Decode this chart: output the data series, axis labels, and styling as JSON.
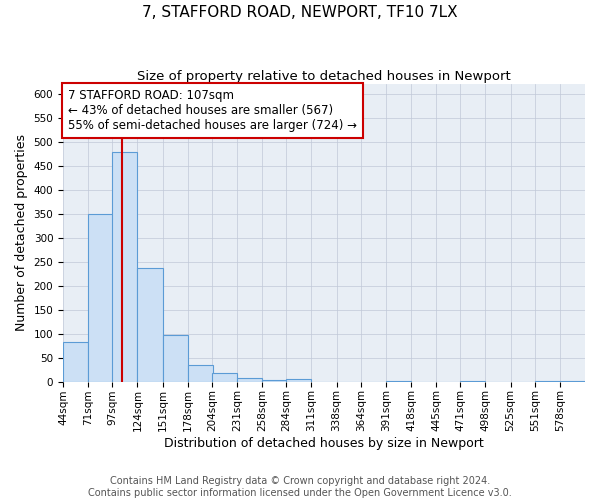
{
  "title": "7, STAFFORD ROAD, NEWPORT, TF10 7LX",
  "subtitle": "Size of property relative to detached houses in Newport",
  "xlabel": "Distribution of detached houses by size in Newport",
  "ylabel": "Number of detached properties",
  "bar_edges": [
    44,
    71,
    97,
    124,
    151,
    178,
    204,
    231,
    258,
    284,
    311,
    338,
    364,
    391,
    418,
    445,
    471,
    498,
    525,
    551,
    578
  ],
  "bar_heights": [
    83,
    350,
    478,
    236,
    97,
    34,
    18,
    8,
    3,
    5,
    0,
    0,
    0,
    2,
    0,
    0,
    2,
    0,
    0,
    2,
    1
  ],
  "bar_color": "#cce0f5",
  "bar_edge_color": "#5b9bd5",
  "property_line_x": 107,
  "property_line_color": "#cc0000",
  "annotation_text": "7 STAFFORD ROAD: 107sqm\n← 43% of detached houses are smaller (567)\n55% of semi-detached houses are larger (724) →",
  "annotation_box_color": "#ffffff",
  "annotation_box_edge": "#cc0000",
  "ylim": [
    0,
    620
  ],
  "yticks": [
    0,
    50,
    100,
    150,
    200,
    250,
    300,
    350,
    400,
    450,
    500,
    550,
    600
  ],
  "grid_color": "#c0c8d8",
  "background_color": "#e8eef5",
  "footer_text": "Contains HM Land Registry data © Crown copyright and database right 2024.\nContains public sector information licensed under the Open Government Licence v3.0.",
  "title_fontsize": 11,
  "subtitle_fontsize": 9.5,
  "xlabel_fontsize": 9,
  "ylabel_fontsize": 9,
  "tick_fontsize": 7.5,
  "annotation_fontsize": 8.5,
  "footer_fontsize": 7
}
